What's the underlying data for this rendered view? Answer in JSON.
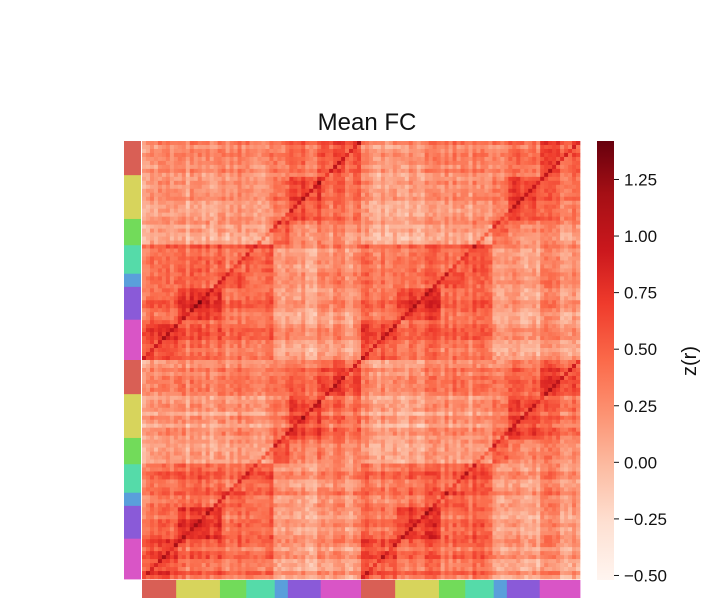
{
  "chart_data": {
    "type": "heatmap",
    "title": "Mean FC",
    "colorbar": {
      "label": "z(r)",
      "vmin": -0.52,
      "vmax": 1.42,
      "colormap": "Reds",
      "ticks": [
        1.25,
        1.0,
        0.75,
        0.5,
        0.25,
        0.0,
        -0.25,
        -0.5
      ],
      "tick_labels": [
        "1.25",
        "1.00",
        "0.75",
        "0.50",
        "0.25",
        "0.00",
        "−0.25",
        "−0.50"
      ]
    },
    "row_networks_top_to_bottom": [
      {
        "color": "#d95f55",
        "size": 0.078
      },
      {
        "color": "#d7d45c",
        "size": 0.1
      },
      {
        "color": "#72db5a",
        "size": 0.06
      },
      {
        "color": "#55dba9",
        "size": 0.065
      },
      {
        "color": "#5a9fdb",
        "size": 0.03
      },
      {
        "color": "#8a5ad8",
        "size": 0.075
      },
      {
        "color": "#d955c6",
        "size": 0.092
      }
    ],
    "column_networks_left_to_right": [
      {
        "color": "#d95f55",
        "size": 0.078
      },
      {
        "color": "#d7d45c",
        "size": 0.1
      },
      {
        "color": "#72db5a",
        "size": 0.06
      },
      {
        "color": "#55dba9",
        "size": 0.065
      },
      {
        "color": "#5a9fdb",
        "size": 0.03
      },
      {
        "color": "#8a5ad8",
        "size": 0.075
      },
      {
        "color": "#d955c6",
        "size": 0.092
      }
    ],
    "network_repeats": 2
  }
}
